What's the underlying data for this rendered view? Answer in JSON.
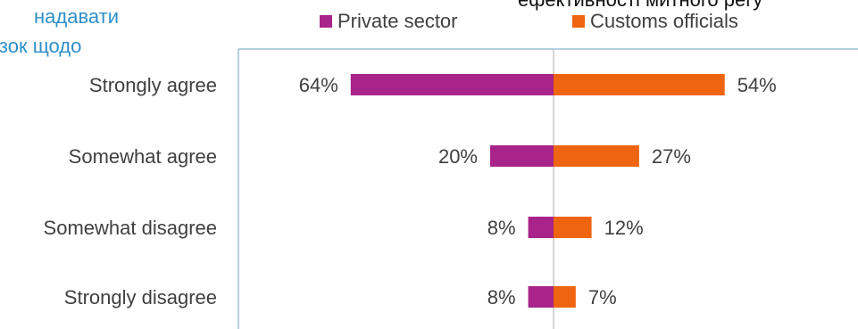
{
  "fragments": {
    "left_line1": "надавати",
    "left_line2": "ізок   щодо",
    "top_right": "ефективності митного регу"
  },
  "colors": {
    "private_sector": "#a8238a",
    "customs_officials": "#ee6410",
    "axis": "#9bbfd8",
    "center_line": "#c8c8c8"
  },
  "chart_data": {
    "type": "bar",
    "orientation": "horizontal-diverging",
    "categories": [
      "Strongly agree",
      "Somewhat agree",
      "Somewhat disagree",
      "Strongly disagree"
    ],
    "series": [
      {
        "name": "Private sector",
        "values": [
          64,
          20,
          8,
          8
        ],
        "labels": [
          "64%",
          "20%",
          "8%",
          "8%"
        ],
        "direction": "left"
      },
      {
        "name": "Customs officials",
        "values": [
          54,
          27,
          12,
          7
        ],
        "labels": [
          "54%",
          "27%",
          "12%",
          "7%"
        ],
        "direction": "right"
      }
    ],
    "legend_position": "top"
  }
}
